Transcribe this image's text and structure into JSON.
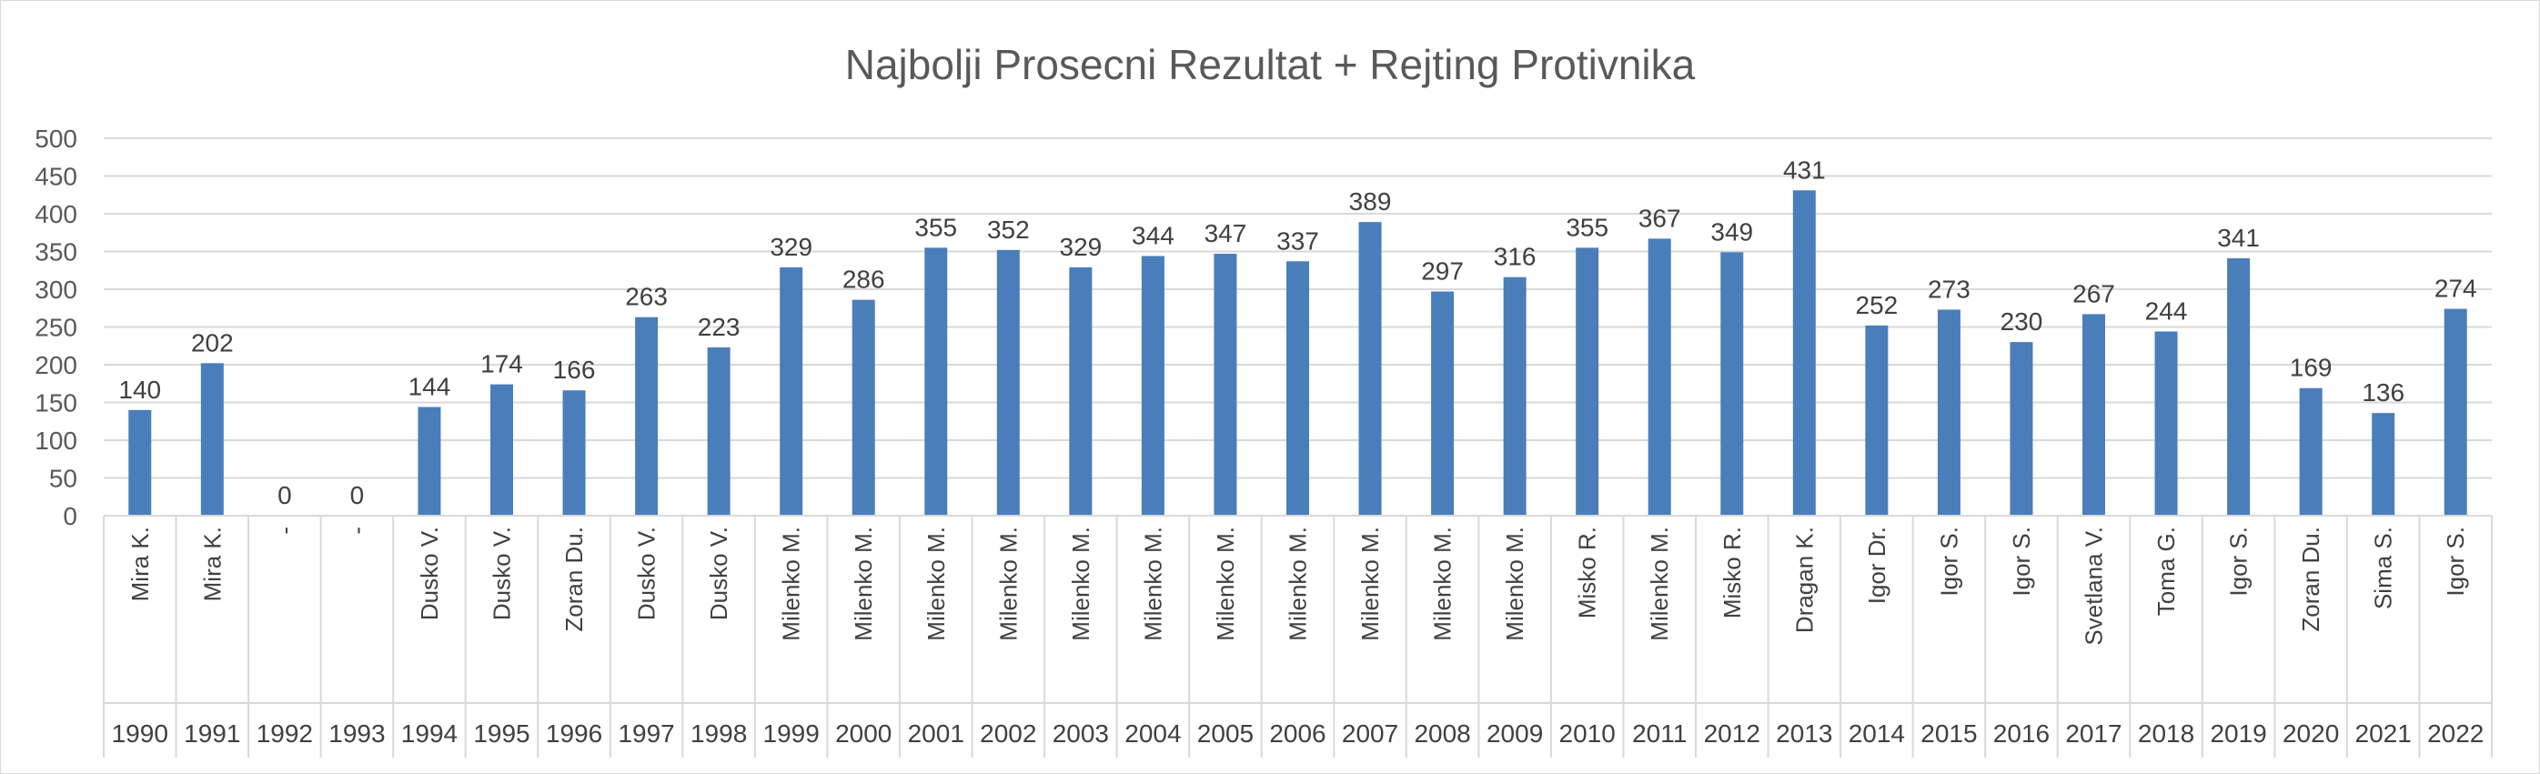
{
  "chart_data": {
    "type": "bar",
    "title": "Najbolji Prosecni Rezultat + Rejting Protivnika",
    "xlabel": "",
    "ylabel": "",
    "ylim": [
      0,
      500
    ],
    "yticks": [
      "0",
      "50",
      "100",
      "150",
      "200",
      "250",
      "300",
      "350",
      "400",
      "450",
      "500"
    ],
    "grid": true,
    "legend": "none",
    "bar_color": "#4a7ebb",
    "categories": [
      {
        "name": "Mira K.",
        "year": "1990"
      },
      {
        "name": "Mira K.",
        "year": "1991"
      },
      {
        "name": "-",
        "year": "1992"
      },
      {
        "name": "-",
        "year": "1993"
      },
      {
        "name": "Dusko V.",
        "year": "1994"
      },
      {
        "name": "Dusko V.",
        "year": "1995"
      },
      {
        "name": "Zoran Du.",
        "year": "1996"
      },
      {
        "name": "Dusko V.",
        "year": "1997"
      },
      {
        "name": "Dusko V.",
        "year": "1998"
      },
      {
        "name": "Milenko M.",
        "year": "1999"
      },
      {
        "name": "Milenko M.",
        "year": "2000"
      },
      {
        "name": "Milenko M.",
        "year": "2001"
      },
      {
        "name": "Milenko M.",
        "year": "2002"
      },
      {
        "name": "Milenko M.",
        "year": "2003"
      },
      {
        "name": "Milenko M.",
        "year": "2004"
      },
      {
        "name": "Milenko M.",
        "year": "2005"
      },
      {
        "name": "Milenko M.",
        "year": "2006"
      },
      {
        "name": "Milenko M.",
        "year": "2007"
      },
      {
        "name": "Milenko M.",
        "year": "2008"
      },
      {
        "name": "Milenko M.",
        "year": "2009"
      },
      {
        "name": "Misko R.",
        "year": "2010"
      },
      {
        "name": "Milenko M.",
        "year": "2011"
      },
      {
        "name": "Misko R.",
        "year": "2012"
      },
      {
        "name": "Dragan K.",
        "year": "2013"
      },
      {
        "name": "Igor Dr.",
        "year": "2014"
      },
      {
        "name": "Igor S.",
        "year": "2015"
      },
      {
        "name": "Igor S.",
        "year": "2016"
      },
      {
        "name": "Svetlana V.",
        "year": "2017"
      },
      {
        "name": "Toma G.",
        "year": "2018"
      },
      {
        "name": "Igor S.",
        "year": "2019"
      },
      {
        "name": "Zoran Du.",
        "year": "2020"
      },
      {
        "name": "Sima S.",
        "year": "2021"
      },
      {
        "name": "Igor S.",
        "year": "2022"
      }
    ],
    "values": [
      140,
      202,
      0,
      0,
      144,
      174,
      166,
      263,
      223,
      329,
      286,
      355,
      352,
      329,
      344,
      347,
      337,
      389,
      297,
      316,
      355,
      367,
      349,
      431,
      252,
      273,
      230,
      267,
      244,
      341,
      169,
      136,
      274
    ]
  }
}
